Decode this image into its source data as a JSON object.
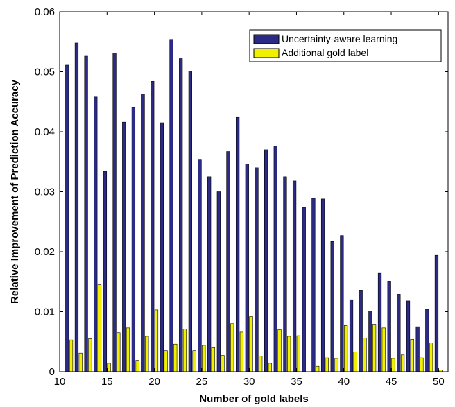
{
  "chart_data": {
    "type": "bar",
    "xlabel": "Number of gold labels",
    "ylabel": "Relative Improvement of Prediction Accuracy",
    "xlim": [
      10,
      51
    ],
    "ylim": [
      0,
      0.06
    ],
    "x_ticks": [
      10,
      15,
      20,
      25,
      30,
      35,
      40,
      45,
      50
    ],
    "y_ticks": [
      0,
      0.01,
      0.02,
      0.03,
      0.04,
      0.05,
      0.06
    ],
    "y_tick_labels": [
      "0",
      "0.01",
      "0.02",
      "0.03",
      "0.04",
      "0.05",
      "0.06"
    ],
    "grid": false,
    "legend_position": "top-right",
    "x": [
      11,
      12,
      13,
      14,
      15,
      16,
      17,
      18,
      19,
      20,
      21,
      22,
      23,
      24,
      25,
      26,
      27,
      28,
      29,
      30,
      31,
      32,
      33,
      34,
      35,
      36,
      37,
      38,
      39,
      40,
      41,
      42,
      43,
      44,
      45,
      46,
      47,
      48,
      49,
      50
    ],
    "series": [
      {
        "name": "Uncertainty-aware learning",
        "color": "#2b2b86",
        "values": [
          0.0511,
          0.0548,
          0.0526,
          0.0458,
          0.0334,
          0.0531,
          0.0416,
          0.044,
          0.0463,
          0.0484,
          0.0415,
          0.0554,
          0.0522,
          0.0501,
          0.0353,
          0.0325,
          0.03,
          0.0367,
          0.0424,
          0.0346,
          0.034,
          0.037,
          0.0376,
          0.0325,
          0.0318,
          0.0274,
          0.0289,
          0.0288,
          0.0217,
          0.0227,
          0.012,
          0.0136,
          0.0101,
          0.0164,
          0.0151,
          0.0129,
          0.0118,
          0.0075,
          0.0104,
          0.0194
        ]
      },
      {
        "name": "Additional gold label",
        "color": "#f0f000",
        "values": [
          0.0053,
          0.0031,
          0.0055,
          0.0145,
          0.0014,
          0.0065,
          0.0073,
          0.0019,
          0.0059,
          0.0103,
          0.0035,
          0.0046,
          0.0071,
          0.0035,
          0.0044,
          0.004,
          0.0027,
          0.008,
          0.0066,
          0.0092,
          0.0026,
          0.0014,
          0.007,
          0.0059,
          0.006,
          0.0,
          0.0009,
          0.0023,
          0.0022,
          0.0077,
          0.0033,
          0.0056,
          0.0078,
          0.0073,
          0.0022,
          0.0028,
          0.0054,
          0.0023,
          0.0048,
          0.0003
        ]
      }
    ]
  }
}
